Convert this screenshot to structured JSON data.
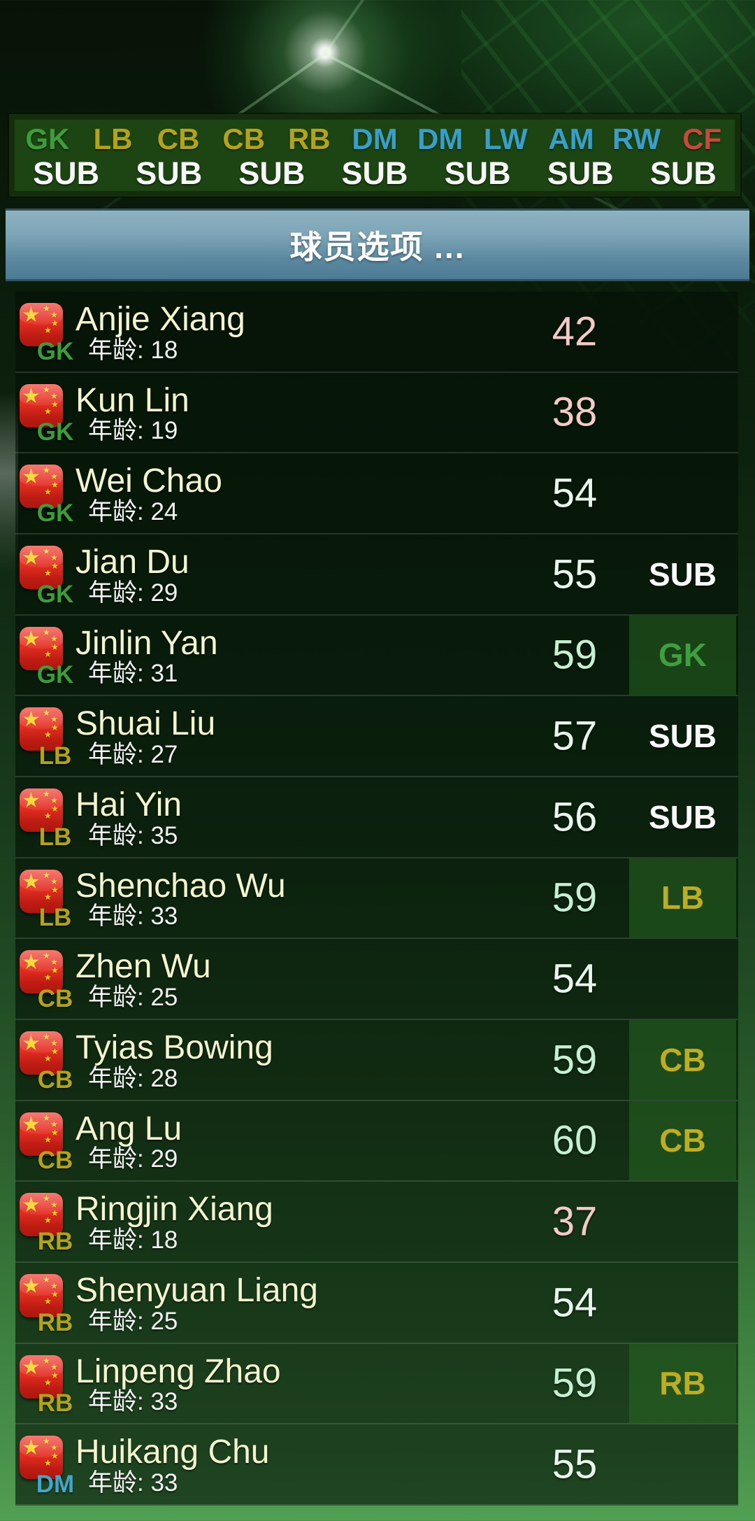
{
  "header": {
    "title": "球员选项 ..."
  },
  "bench_bar": {
    "positions": [
      {
        "label": "GK",
        "color": "#3f9c3c"
      },
      {
        "label": "LB",
        "color": "#b3a31c"
      },
      {
        "label": "CB",
        "color": "#b3a31c"
      },
      {
        "label": "CB",
        "color": "#b3a31c"
      },
      {
        "label": "RB",
        "color": "#b3a31c"
      },
      {
        "label": "DM",
        "color": "#38a0c8"
      },
      {
        "label": "DM",
        "color": "#38a0c8"
      },
      {
        "label": "LW",
        "color": "#38a0c8"
      },
      {
        "label": "AM",
        "color": "#38a0c8"
      },
      {
        "label": "RW",
        "color": "#38a0c8"
      },
      {
        "label": "CF",
        "color": "#c4493e"
      }
    ],
    "sub_slots": [
      "SUB",
      "SUB",
      "SUB",
      "SUB",
      "SUB",
      "SUB",
      "SUB"
    ]
  },
  "labels": {
    "age_prefix": "年龄:"
  },
  "position_colors": {
    "GK": "#3f9c3c",
    "LB": "#b3a31c",
    "CB": "#b3a31c",
    "RB": "#b3a31c",
    "DM": "#42a6cc"
  },
  "rating_colors": {
    "low": "#f4cbc6",
    "mid": "#e9f6ec",
    "high": "#c7f0d2"
  },
  "players": [
    {
      "name": "Anjie Xiang",
      "position": "GK",
      "age": 18,
      "rating": 42,
      "rating_tier": "low",
      "slot": {
        "type": "none"
      }
    },
    {
      "name": "Kun Lin",
      "position": "GK",
      "age": 19,
      "rating": 38,
      "rating_tier": "low",
      "slot": {
        "type": "none"
      }
    },
    {
      "name": "Wei Chao",
      "position": "GK",
      "age": 24,
      "rating": 54,
      "rating_tier": "mid",
      "slot": {
        "type": "none"
      }
    },
    {
      "name": "Jian Du",
      "position": "GK",
      "age": 29,
      "rating": 55,
      "rating_tier": "mid",
      "slot": {
        "type": "sub",
        "label": "SUB"
      }
    },
    {
      "name": "Jinlin Yan",
      "position": "GK",
      "age": 31,
      "rating": 59,
      "rating_tier": "high",
      "slot": {
        "type": "badge",
        "label": "GK",
        "color": "#3f9e3f"
      }
    },
    {
      "name": "Shuai Liu",
      "position": "LB",
      "age": 27,
      "rating": 57,
      "rating_tier": "mid",
      "slot": {
        "type": "sub",
        "label": "SUB"
      }
    },
    {
      "name": "Hai Yin",
      "position": "LB",
      "age": 35,
      "rating": 56,
      "rating_tier": "mid",
      "slot": {
        "type": "sub",
        "label": "SUB"
      }
    },
    {
      "name": "Shenchao Wu",
      "position": "LB",
      "age": 33,
      "rating": 59,
      "rating_tier": "high",
      "slot": {
        "type": "badge",
        "label": "LB",
        "color": "#bdad22"
      }
    },
    {
      "name": "Zhen Wu",
      "position": "CB",
      "age": 25,
      "rating": 54,
      "rating_tier": "mid",
      "slot": {
        "type": "none"
      }
    },
    {
      "name": "Tyias Bowing",
      "position": "CB",
      "age": 28,
      "rating": 59,
      "rating_tier": "high",
      "slot": {
        "type": "badge",
        "label": "CB",
        "color": "#bdad22"
      }
    },
    {
      "name": "Ang Lu",
      "position": "CB",
      "age": 29,
      "rating": 60,
      "rating_tier": "high",
      "slot": {
        "type": "badge",
        "label": "CB",
        "color": "#bdad22"
      }
    },
    {
      "name": "Ringjin Xiang",
      "position": "RB",
      "age": 18,
      "rating": 37,
      "rating_tier": "low",
      "slot": {
        "type": "none"
      }
    },
    {
      "name": "Shenyuan Liang",
      "position": "RB",
      "age": 25,
      "rating": 54,
      "rating_tier": "mid",
      "slot": {
        "type": "none"
      }
    },
    {
      "name": "Linpeng Zhao",
      "position": "RB",
      "age": 33,
      "rating": 59,
      "rating_tier": "high",
      "slot": {
        "type": "badge",
        "label": "RB",
        "color": "#bdad22"
      }
    },
    {
      "name": "Huikang Chu",
      "position": "DM",
      "age": 33,
      "rating": 55,
      "rating_tier": "mid",
      "slot": {
        "type": "none"
      }
    }
  ]
}
